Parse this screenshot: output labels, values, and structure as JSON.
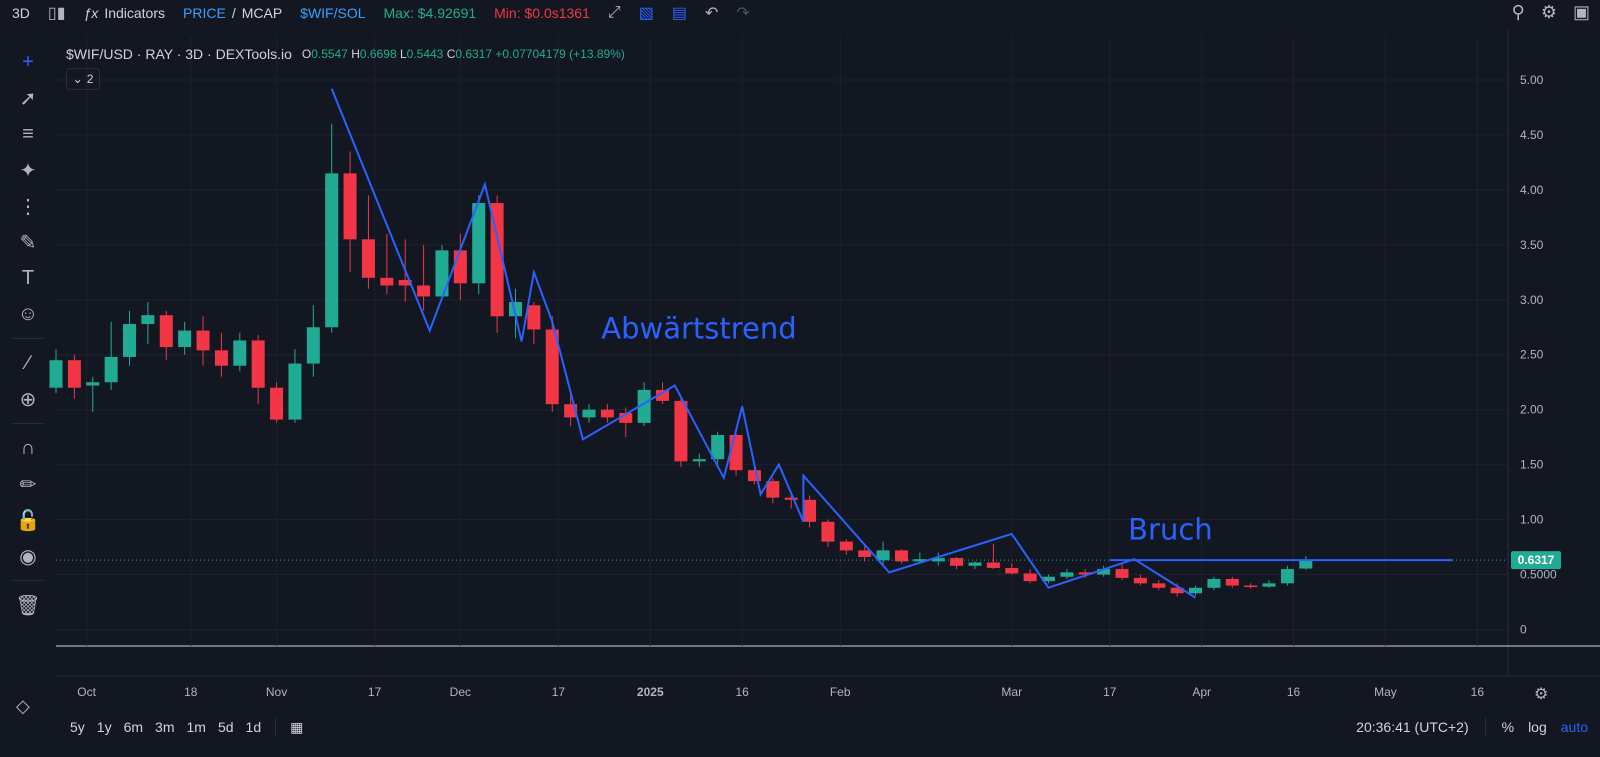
{
  "toolbar": {
    "interval": "3D",
    "indicators_label": "Indicators",
    "price_label": "PRICE",
    "mcap_label": "MCAP",
    "pair_label": "$WIF/SOL",
    "max_label": "Max: $4.92691",
    "min_label": "Min: $0.0s1361"
  },
  "legend": {
    "title": "$WIF/USD · RAY · 3D · DEXTools.io",
    "o_label": "O",
    "o_value": "0.5547",
    "h_label": "H",
    "h_value": "0.6698",
    "l_label": "L",
    "l_value": "0.5443",
    "c_label": "C",
    "c_value": "0.6317",
    "change": "+0.07704179 (+13.89%)",
    "indicator_count": "2"
  },
  "bottom": {
    "ranges": [
      "5y",
      "1y",
      "6m",
      "3m",
      "1m",
      "5d",
      "1d"
    ],
    "time": "20:36:41 (UTC+2)",
    "percent_label": "%",
    "log_label": "log",
    "auto_label": "auto"
  },
  "colors": {
    "background": "#131722",
    "up": "#22ab94",
    "down": "#f23645",
    "drawing": "#2962ff",
    "grid": "#1e222d"
  },
  "chart_data": {
    "type": "candlestick",
    "title": "$WIF/USD · RAY · 3D · DEXTools.io",
    "y_ticks": [
      "5.00",
      "4.50",
      "4.00",
      "3.50",
      "3.00",
      "2.50",
      "2.00",
      "1.50",
      "1.00",
      "0.5000",
      "0"
    ],
    "y_tick_values": [
      5.0,
      4.5,
      4.0,
      3.5,
      3.0,
      2.5,
      2.0,
      1.5,
      1.0,
      0.5,
      0
    ],
    "ylim": [
      -0.15,
      5.4
    ],
    "x_ticks": [
      {
        "label": "Oct",
        "date": "2024-10-01",
        "bold": false
      },
      {
        "label": "18",
        "date": "2024-10-18",
        "bold": false
      },
      {
        "label": "Nov",
        "date": "2024-11-01",
        "bold": false
      },
      {
        "label": "17",
        "date": "2024-11-17",
        "bold": false
      },
      {
        "label": "Dec",
        "date": "2024-12-01",
        "bold": false
      },
      {
        "label": "17",
        "date": "2024-12-17",
        "bold": false
      },
      {
        "label": "2025",
        "date": "2025-01-01",
        "bold": true
      },
      {
        "label": "16",
        "date": "2025-01-16",
        "bold": false
      },
      {
        "label": "Feb",
        "date": "2025-02-01",
        "bold": false
      },
      {
        "label": "Mar",
        "date": "2025-03-01",
        "bold": false
      },
      {
        "label": "17",
        "date": "2025-03-17",
        "bold": false
      },
      {
        "label": "Apr",
        "date": "2025-04-01",
        "bold": false
      },
      {
        "label": "16",
        "date": "2025-04-16",
        "bold": false
      },
      {
        "label": "May",
        "date": "2025-05-01",
        "bold": false
      },
      {
        "label": "16",
        "date": "2025-05-16",
        "bold": false
      }
    ],
    "xlim": [
      "2024-09-26",
      "2025-05-21"
    ],
    "candles": [
      {
        "d": "2024-09-26",
        "o": 2.2,
        "h": 2.55,
        "l": 2.15,
        "c": 2.45
      },
      {
        "d": "2024-09-29",
        "o": 2.45,
        "h": 2.5,
        "l": 2.1,
        "c": 2.2
      },
      {
        "d": "2024-10-02",
        "o": 2.22,
        "h": 2.3,
        "l": 1.98,
        "c": 2.25
      },
      {
        "d": "2024-10-05",
        "o": 2.25,
        "h": 2.8,
        "l": 2.18,
        "c": 2.48
      },
      {
        "d": "2024-10-08",
        "o": 2.48,
        "h": 2.9,
        "l": 2.4,
        "c": 2.78
      },
      {
        "d": "2024-10-11",
        "o": 2.78,
        "h": 2.98,
        "l": 2.6,
        "c": 2.86
      },
      {
        "d": "2024-10-14",
        "o": 2.86,
        "h": 2.9,
        "l": 2.45,
        "c": 2.57
      },
      {
        "d": "2024-10-17",
        "o": 2.57,
        "h": 2.8,
        "l": 2.5,
        "c": 2.72
      },
      {
        "d": "2024-10-20",
        "o": 2.72,
        "h": 2.85,
        "l": 2.4,
        "c": 2.54
      },
      {
        "d": "2024-10-23",
        "o": 2.54,
        "h": 2.7,
        "l": 2.3,
        "c": 2.4
      },
      {
        "d": "2024-10-26",
        "o": 2.4,
        "h": 2.7,
        "l": 2.35,
        "c": 2.63
      },
      {
        "d": "2024-10-29",
        "o": 2.63,
        "h": 2.68,
        "l": 2.05,
        "c": 2.2
      },
      {
        "d": "2024-11-01",
        "o": 2.2,
        "h": 2.25,
        "l": 1.88,
        "c": 1.91
      },
      {
        "d": "2024-11-04",
        "o": 1.91,
        "h": 2.55,
        "l": 1.88,
        "c": 2.42
      },
      {
        "d": "2024-11-07",
        "o": 2.42,
        "h": 2.95,
        "l": 2.3,
        "c": 2.75
      },
      {
        "d": "2024-11-10",
        "o": 2.75,
        "h": 4.6,
        "l": 2.7,
        "c": 4.15
      },
      {
        "d": "2024-11-13",
        "o": 4.15,
        "h": 4.35,
        "l": 3.25,
        "c": 3.55
      },
      {
        "d": "2024-11-16",
        "o": 3.55,
        "h": 3.95,
        "l": 3.1,
        "c": 3.2
      },
      {
        "d": "2024-11-19",
        "o": 3.2,
        "h": 3.6,
        "l": 3.05,
        "c": 3.13
      },
      {
        "d": "2024-11-22",
        "o": 3.18,
        "h": 3.55,
        "l": 2.98,
        "c": 3.13
      },
      {
        "d": "2024-11-25",
        "o": 3.13,
        "h": 3.5,
        "l": 2.9,
        "c": 3.03
      },
      {
        "d": "2024-11-28",
        "o": 3.03,
        "h": 3.5,
        "l": 3.0,
        "c": 3.45
      },
      {
        "d": "2024-12-01",
        "o": 3.45,
        "h": 3.6,
        "l": 3.0,
        "c": 3.15
      },
      {
        "d": "2024-12-04",
        "o": 3.15,
        "h": 3.95,
        "l": 3.05,
        "c": 3.88
      },
      {
        "d": "2024-12-07",
        "o": 3.88,
        "h": 3.95,
        "l": 2.7,
        "c": 2.85
      },
      {
        "d": "2024-12-10",
        "o": 2.85,
        "h": 3.1,
        "l": 2.65,
        "c": 2.98
      },
      {
        "d": "2024-12-13",
        "o": 2.95,
        "h": 2.98,
        "l": 2.6,
        "c": 2.73
      },
      {
        "d": "2024-12-16",
        "o": 2.73,
        "h": 2.85,
        "l": 1.98,
        "c": 2.05
      },
      {
        "d": "2024-12-19",
        "o": 2.05,
        "h": 2.15,
        "l": 1.85,
        "c": 1.93
      },
      {
        "d": "2024-12-22",
        "o": 1.93,
        "h": 2.05,
        "l": 1.88,
        "c": 2.0
      },
      {
        "d": "2024-12-25",
        "o": 2.0,
        "h": 2.05,
        "l": 1.88,
        "c": 1.93
      },
      {
        "d": "2024-12-28",
        "o": 1.97,
        "h": 2.02,
        "l": 1.75,
        "c": 1.88
      },
      {
        "d": "2024-12-31",
        "o": 1.88,
        "h": 2.25,
        "l": 1.85,
        "c": 2.18
      },
      {
        "d": "2025-01-03",
        "o": 2.18,
        "h": 2.25,
        "l": 2.05,
        "c": 2.08
      },
      {
        "d": "2025-01-06",
        "o": 2.08,
        "h": 2.1,
        "l": 1.48,
        "c": 1.53
      },
      {
        "d": "2025-01-09",
        "o": 1.53,
        "h": 1.6,
        "l": 1.48,
        "c": 1.55
      },
      {
        "d": "2025-01-12",
        "o": 1.55,
        "h": 1.8,
        "l": 1.5,
        "c": 1.77
      },
      {
        "d": "2025-01-15",
        "o": 1.77,
        "h": 1.82,
        "l": 1.4,
        "c": 1.45
      },
      {
        "d": "2025-01-18",
        "o": 1.45,
        "h": 1.5,
        "l": 1.32,
        "c": 1.35
      },
      {
        "d": "2025-01-21",
        "o": 1.35,
        "h": 1.38,
        "l": 1.15,
        "c": 1.2
      },
      {
        "d": "2025-01-24",
        "o": 1.2,
        "h": 1.25,
        "l": 1.1,
        "c": 1.18
      },
      {
        "d": "2025-01-27",
        "o": 1.18,
        "h": 1.22,
        "l": 0.93,
        "c": 0.98
      },
      {
        "d": "2025-01-30",
        "o": 0.98,
        "h": 1.0,
        "l": 0.75,
        "c": 0.8
      },
      {
        "d": "2025-02-02",
        "o": 0.8,
        "h": 0.82,
        "l": 0.68,
        "c": 0.72
      },
      {
        "d": "2025-02-05",
        "o": 0.72,
        "h": 0.78,
        "l": 0.62,
        "c": 0.66
      },
      {
        "d": "2025-02-08",
        "o": 0.63,
        "h": 0.8,
        "l": 0.58,
        "c": 0.72
      },
      {
        "d": "2025-02-11",
        "o": 0.72,
        "h": 0.73,
        "l": 0.6,
        "c": 0.62
      },
      {
        "d": "2025-02-14",
        "o": 0.62,
        "h": 0.7,
        "l": 0.6,
        "c": 0.64
      },
      {
        "d": "2025-02-17",
        "o": 0.62,
        "h": 0.7,
        "l": 0.58,
        "c": 0.65
      },
      {
        "d": "2025-02-20",
        "o": 0.65,
        "h": 0.66,
        "l": 0.55,
        "c": 0.58
      },
      {
        "d": "2025-02-23",
        "o": 0.58,
        "h": 0.62,
        "l": 0.55,
        "c": 0.61
      },
      {
        "d": "2025-02-26",
        "o": 0.61,
        "h": 0.78,
        "l": 0.55,
        "c": 0.56
      },
      {
        "d": "2025-03-01",
        "o": 0.56,
        "h": 0.6,
        "l": 0.5,
        "c": 0.51
      },
      {
        "d": "2025-03-04",
        "o": 0.51,
        "h": 0.55,
        "l": 0.42,
        "c": 0.44
      },
      {
        "d": "2025-03-07",
        "o": 0.44,
        "h": 0.5,
        "l": 0.42,
        "c": 0.48
      },
      {
        "d": "2025-03-10",
        "o": 0.48,
        "h": 0.55,
        "l": 0.46,
        "c": 0.52
      },
      {
        "d": "2025-03-13",
        "o": 0.52,
        "h": 0.55,
        "l": 0.47,
        "c": 0.5
      },
      {
        "d": "2025-03-16",
        "o": 0.5,
        "h": 0.58,
        "l": 0.48,
        "c": 0.55
      },
      {
        "d": "2025-03-19",
        "o": 0.55,
        "h": 0.6,
        "l": 0.45,
        "c": 0.47
      },
      {
        "d": "2025-03-22",
        "o": 0.47,
        "h": 0.5,
        "l": 0.4,
        "c": 0.42
      },
      {
        "d": "2025-03-25",
        "o": 0.42,
        "h": 0.45,
        "l": 0.36,
        "c": 0.38
      },
      {
        "d": "2025-03-28",
        "o": 0.38,
        "h": 0.42,
        "l": 0.3,
        "c": 0.33
      },
      {
        "d": "2025-03-31",
        "o": 0.33,
        "h": 0.4,
        "l": 0.31,
        "c": 0.38
      },
      {
        "d": "2025-04-03",
        "o": 0.38,
        "h": 0.48,
        "l": 0.36,
        "c": 0.46
      },
      {
        "d": "2025-04-06",
        "o": 0.46,
        "h": 0.48,
        "l": 0.38,
        "c": 0.4
      },
      {
        "d": "2025-04-09",
        "o": 0.4,
        "h": 0.42,
        "l": 0.37,
        "c": 0.39
      },
      {
        "d": "2025-04-12",
        "o": 0.39,
        "h": 0.45,
        "l": 0.38,
        "c": 0.42
      },
      {
        "d": "2025-04-15",
        "o": 0.42,
        "h": 0.58,
        "l": 0.4,
        "c": 0.55
      },
      {
        "d": "2025-04-18",
        "o": 0.5547,
        "h": 0.6698,
        "l": 0.5443,
        "c": 0.6317
      }
    ],
    "drawings": {
      "zigzag": [
        {
          "d": "2024-11-10",
          "v": 4.92
        },
        {
          "d": "2024-11-26",
          "v": 2.72
        },
        {
          "d": "2024-12-05",
          "v": 4.05
        },
        {
          "d": "2024-12-11",
          "v": 2.62
        },
        {
          "d": "2024-12-13",
          "v": 3.25
        },
        {
          "d": "2024-12-16",
          "v": 2.8
        },
        {
          "d": "2024-12-21",
          "v": 1.73
        },
        {
          "d": "2025-01-05",
          "v": 2.22
        },
        {
          "d": "2025-01-13",
          "v": 1.38
        },
        {
          "d": "2025-01-16",
          "v": 2.03
        },
        {
          "d": "2025-01-19",
          "v": 1.23
        },
        {
          "d": "2025-01-22",
          "v": 1.5
        },
        {
          "d": "2025-01-26",
          "v": 0.98
        },
        {
          "d": "2025-01-26",
          "v": 1.4
        },
        {
          "d": "2025-02-09",
          "v": 0.52
        },
        {
          "d": "2025-03-01",
          "v": 0.87
        },
        {
          "d": "2025-03-07",
          "v": 0.38
        },
        {
          "d": "2025-03-21",
          "v": 0.64
        },
        {
          "d": "2025-03-31",
          "v": 0.29
        }
      ],
      "break_line": {
        "from": "2025-03-17",
        "to": "2025-05-12",
        "v": 0.6317
      }
    },
    "annotations": [
      {
        "text": "Abwärtstrend",
        "d": "2024-12-24",
        "v": 2.65
      },
      {
        "text": "Bruch",
        "d": "2025-03-20",
        "v": 0.82
      }
    ],
    "last_price": "0.6317"
  }
}
